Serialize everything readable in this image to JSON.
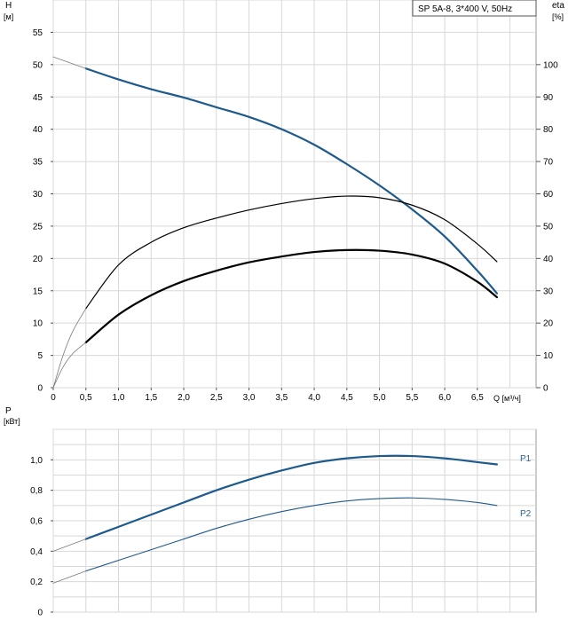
{
  "chart_data": [
    {
      "type": "line",
      "legend_text": "SP 5A-8, 3*400 V, 50Hz",
      "legend_position": "top-right",
      "left_axis_label": "H",
      "left_axis_unit": "[м]",
      "right_axis_label": "eta",
      "right_axis_unit": "[%]",
      "x_axis_label": "Q [м³/ч]",
      "xlim": [
        0,
        7.4
      ],
      "ylim_left": [
        0,
        60
      ],
      "ylim_right": [
        0,
        120
      ],
      "x_ticks": [
        "0",
        "0,5",
        "1,0",
        "1,5",
        "2,0",
        "2,5",
        "3,0",
        "3,5",
        "4,0",
        "4,5",
        "5,0",
        "5,5",
        "6,0",
        "6,5"
      ],
      "left_ticks": [
        "0",
        "5",
        "10",
        "15",
        "20",
        "25",
        "30",
        "35",
        "40",
        "45",
        "50",
        "55"
      ],
      "right_ticks": [
        "0",
        "10",
        "20",
        "30",
        "40",
        "50",
        "60",
        "70",
        "80",
        "90",
        "100"
      ],
      "grid": true,
      "series": [
        {
          "axis": "left",
          "color": "#1f5a8c",
          "width": 2.2,
          "x": [
            0.5,
            1.0,
            1.5,
            2.0,
            2.5,
            3.0,
            3.5,
            4.0,
            4.5,
            5.0,
            5.5,
            6.0,
            6.5,
            6.8
          ],
          "values": [
            49.4,
            47.7,
            46.2,
            44.9,
            43.4,
            41.9,
            40.0,
            37.6,
            34.6,
            31.3,
            27.6,
            23.4,
            18.1,
            14.6
          ]
        },
        {
          "axis": "left",
          "color": "#7a7a7a",
          "width": 0.8,
          "x": [
            0,
            0.25,
            0.5
          ],
          "values": [
            51.2,
            50.3,
            49.4
          ]
        },
        {
          "axis": "right",
          "color": "#000000",
          "width": 1.2,
          "x": [
            0.5,
            1.0,
            1.5,
            2.0,
            2.5,
            3.0,
            3.5,
            4.0,
            4.5,
            5.0,
            5.5,
            6.0,
            6.5,
            6.8
          ],
          "values": [
            24.5,
            38.0,
            45.0,
            49.5,
            52.5,
            55.0,
            57.0,
            58.5,
            59.3,
            58.8,
            56.5,
            52.0,
            44.5,
            39.0
          ]
        },
        {
          "axis": "right",
          "color": "#7a7a7a",
          "width": 0.8,
          "x": [
            0,
            0.15,
            0.3,
            0.5
          ],
          "values": [
            0,
            10.0,
            17.5,
            24.5
          ]
        },
        {
          "axis": "left",
          "color": "#000000",
          "width": 2.2,
          "x": [
            0.5,
            1.0,
            1.5,
            2.0,
            2.5,
            3.0,
            3.5,
            4.0,
            4.5,
            5.0,
            5.5,
            6.0,
            6.5,
            6.8
          ],
          "values": [
            7.0,
            11.3,
            14.3,
            16.5,
            18.1,
            19.4,
            20.3,
            21.0,
            21.3,
            21.2,
            20.6,
            19.2,
            16.4,
            14.0
          ]
        },
        {
          "axis": "left",
          "color": "#7a7a7a",
          "width": 0.8,
          "x": [
            0,
            0.15,
            0.3,
            0.5
          ],
          "values": [
            0,
            3.2,
            5.3,
            7.0
          ]
        }
      ]
    },
    {
      "type": "line",
      "left_axis_label": "P",
      "left_axis_unit": "[кВт]",
      "xlim": [
        0,
        7.4
      ],
      "ylim": [
        0,
        1.2
      ],
      "left_ticks": [
        "0",
        "0,2",
        "0,4",
        "0,6",
        "0,8",
        "1,0"
      ],
      "grid": true,
      "series": [
        {
          "name": "P1",
          "color": "#1f5a8c",
          "width": 2.2,
          "x": [
            0.5,
            1.0,
            1.5,
            2.0,
            2.5,
            3.0,
            3.5,
            4.0,
            4.5,
            5.0,
            5.5,
            6.0,
            6.5,
            6.8
          ],
          "values": [
            0.48,
            0.56,
            0.64,
            0.72,
            0.8,
            0.87,
            0.93,
            0.98,
            1.01,
            1.025,
            1.025,
            1.01,
            0.985,
            0.97
          ]
        },
        {
          "color": "#7a7a7a",
          "width": 0.8,
          "x": [
            0,
            0.25,
            0.5
          ],
          "values": [
            0.4,
            0.44,
            0.48
          ]
        },
        {
          "name": "P2",
          "color": "#1f5a8c",
          "width": 1.1,
          "x": [
            0.5,
            1.0,
            1.5,
            2.0,
            2.5,
            3.0,
            3.5,
            4.0,
            4.5,
            5.0,
            5.5,
            6.0,
            6.5,
            6.8
          ],
          "values": [
            0.27,
            0.34,
            0.41,
            0.48,
            0.55,
            0.61,
            0.66,
            0.7,
            0.73,
            0.745,
            0.75,
            0.74,
            0.72,
            0.7
          ]
        },
        {
          "color": "#7a7a7a",
          "width": 0.8,
          "x": [
            0,
            0.25,
            0.5
          ],
          "values": [
            0.19,
            0.23,
            0.27
          ]
        }
      ]
    }
  ]
}
